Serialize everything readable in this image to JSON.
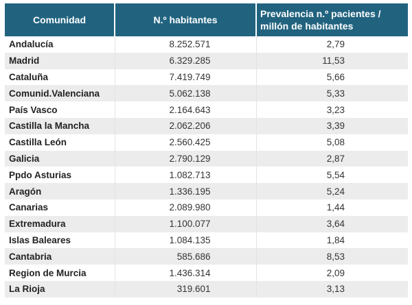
{
  "table": {
    "headers": [
      "Comunidad",
      "N.º habitantes",
      "Prevalencia n.º pacientes / millón de habitantes"
    ],
    "rows": [
      {
        "comunidad": "Andalucía",
        "habitantes": "8.252.571",
        "prevalencia": "2,79"
      },
      {
        "comunidad": "Madrid",
        "habitantes": "6.329.285",
        "prevalencia": "11,53"
      },
      {
        "comunidad": "Cataluña",
        "habitantes": "7.419.749",
        "prevalencia": "5,66"
      },
      {
        "comunidad": "Comunid.Valenciana",
        "habitantes": "5.062.138",
        "prevalencia": "5,33"
      },
      {
        "comunidad": "País Vasco",
        "habitantes": "2.164.643",
        "prevalencia": "3,23"
      },
      {
        "comunidad": "Castilla la Mancha",
        "habitantes": "2.062.206",
        "prevalencia": "3,39"
      },
      {
        "comunidad": "Castilla León",
        "habitantes": "2.560.425",
        "prevalencia": "5,08"
      },
      {
        "comunidad": "Galicia",
        "habitantes": "2.790.129",
        "prevalencia": "2,87"
      },
      {
        "comunidad": "Ppdo Asturias",
        "habitantes": "1.082.713",
        "prevalencia": "5,54"
      },
      {
        "comunidad": "Aragón",
        "habitantes": "1.336.195",
        "prevalencia": "5,24"
      },
      {
        "comunidad": "Canarias",
        "habitantes": "2.089.980",
        "prevalencia": "1,44"
      },
      {
        "comunidad": "Extremadura",
        "habitantes": "1.100.077",
        "prevalencia": "3,64"
      },
      {
        "comunidad": "Islas Baleares",
        "habitantes": "1.084.135",
        "prevalencia": "1,84"
      },
      {
        "comunidad": "Cantabria",
        "habitantes": "585.686",
        "prevalencia": "8,53"
      },
      {
        "comunidad": "Region de Murcia",
        "habitantes": "1.436.314",
        "prevalencia": "2,09"
      },
      {
        "comunidad": "La Rioja",
        "habitantes": "319.601",
        "prevalencia": "3,13"
      }
    ]
  },
  "colors": {
    "header_bg": "#21637f",
    "stripe": "#ececec"
  }
}
